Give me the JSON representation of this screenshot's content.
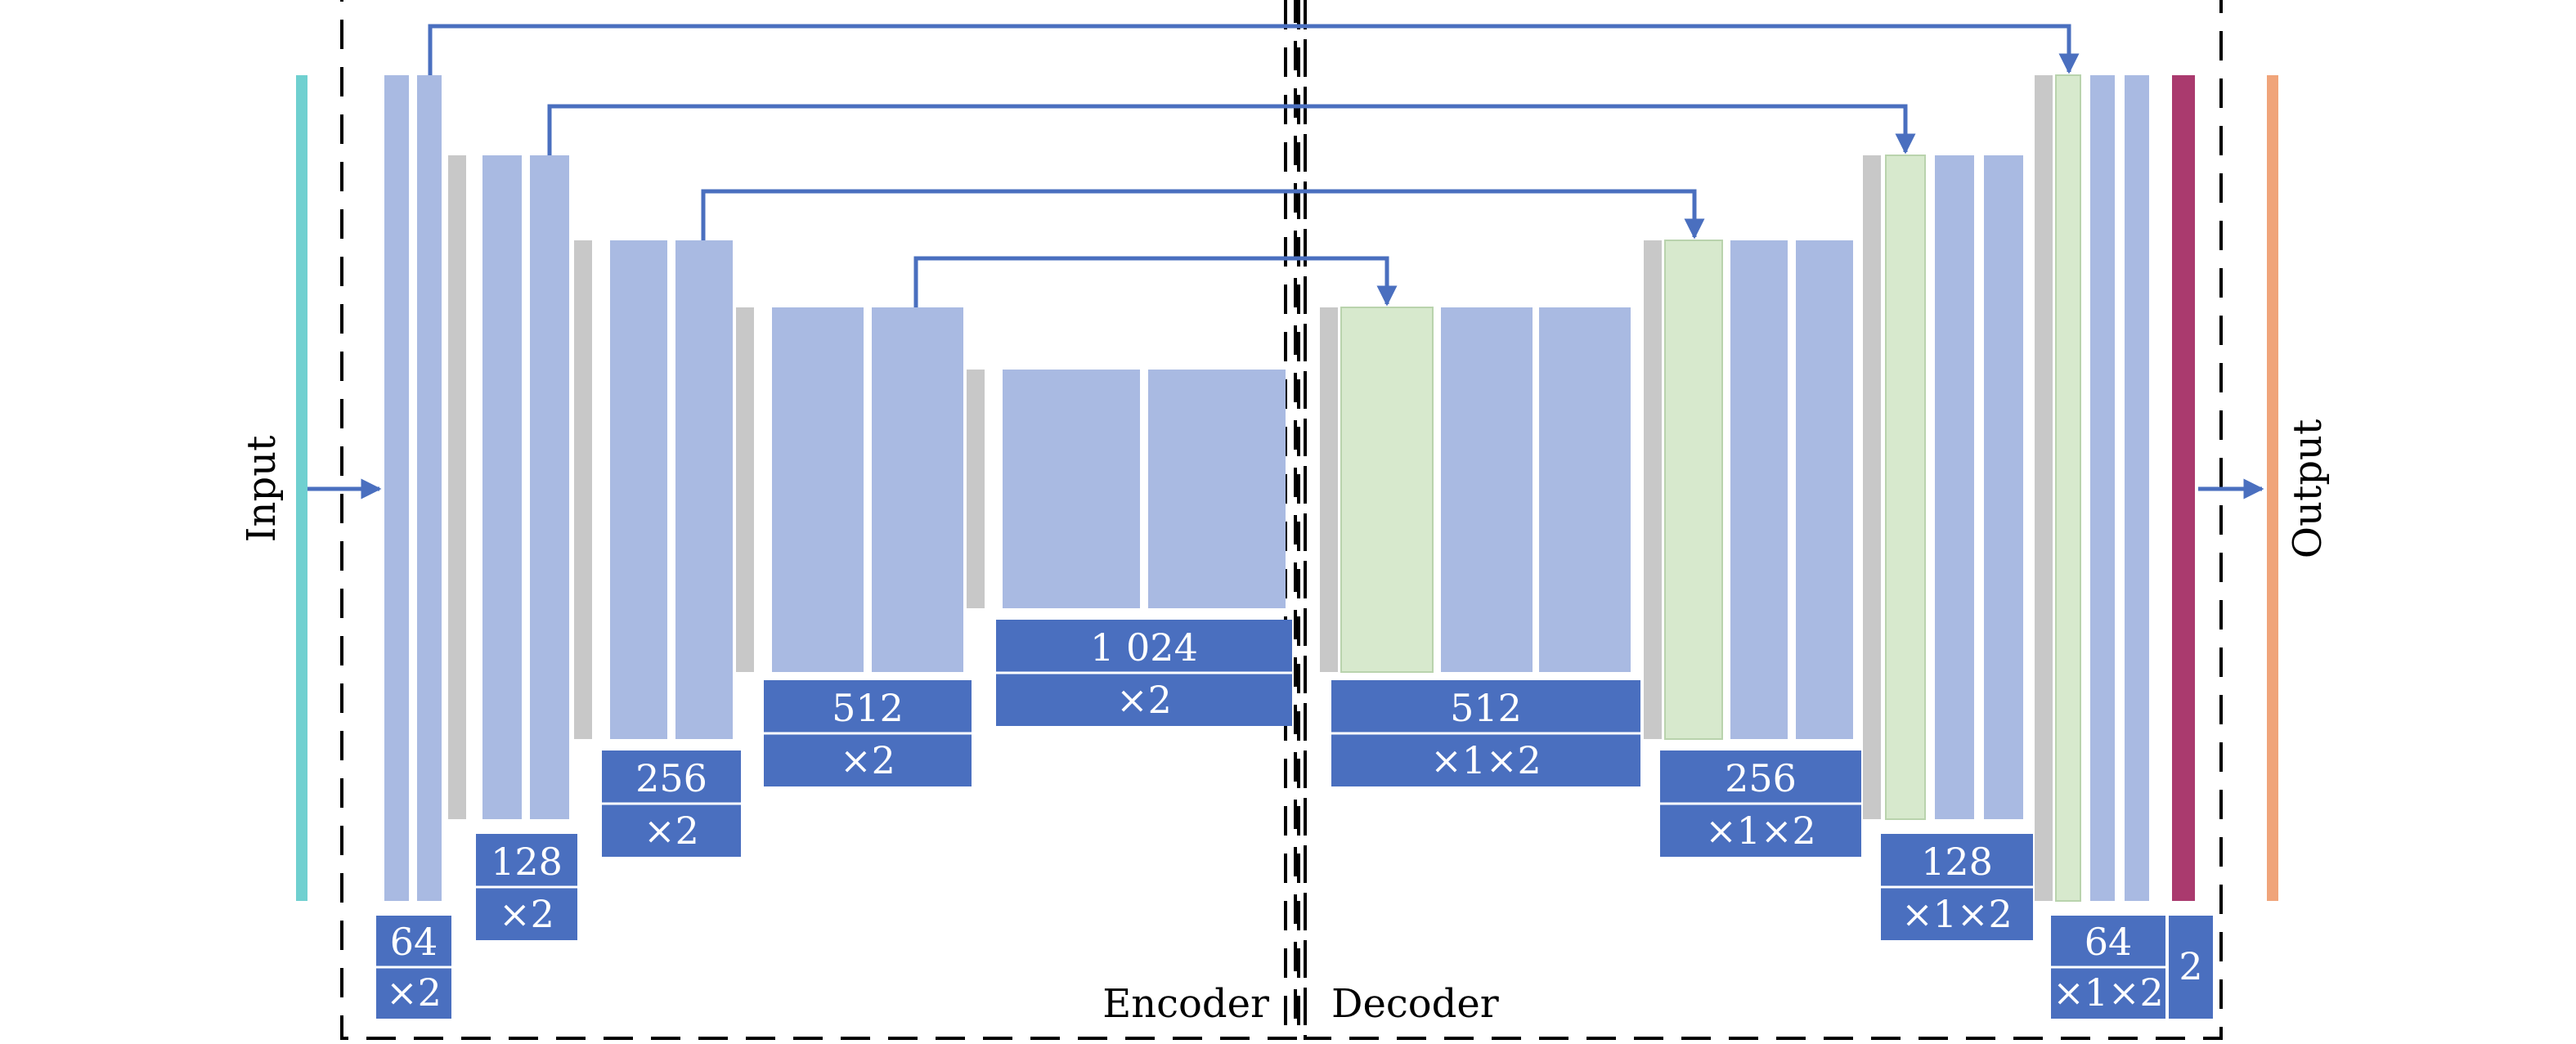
{
  "labels": {
    "input": "Input",
    "output": "Output",
    "encoder": "Encoder",
    "decoder": "Decoder"
  },
  "encoder_blocks": [
    {
      "channels": "64",
      "op": "×2"
    },
    {
      "channels": "128",
      "op": "×2"
    },
    {
      "channels": "256",
      "op": "×2"
    },
    {
      "channels": "512",
      "op": "×2"
    },
    {
      "channels": "1 024",
      "op": "×2"
    }
  ],
  "decoder_blocks": [
    {
      "channels": "512",
      "op": "×1×2"
    },
    {
      "channels": "256",
      "op": "×1×2"
    },
    {
      "channels": "128",
      "op": "×1×2"
    },
    {
      "channels": "64",
      "op": "×1×2"
    }
  ],
  "final_conv": {
    "channels": "2"
  },
  "colors": {
    "conv": "#a9bae2",
    "concat": "#d7e9cd",
    "pool": "#c8c8c8",
    "label_box": "#4a6fbf",
    "arrow": "#4a6fbf",
    "input_bar": "#6fd0d0",
    "output_bar": "#f0a47a",
    "final_bar": "#aa3a6e",
    "dashed_frame": "#000000"
  }
}
